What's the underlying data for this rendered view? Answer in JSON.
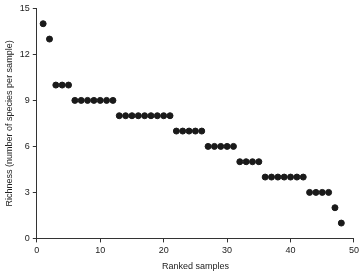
{
  "chart_data": {
    "type": "scatter",
    "x_label": "Ranked samples",
    "y_label": "Richness (number of species per sample)",
    "x": [
      1,
      2,
      3,
      4,
      5,
      6,
      7,
      8,
      9,
      10,
      11,
      12,
      13,
      14,
      15,
      16,
      17,
      18,
      19,
      20,
      21,
      22,
      23,
      24,
      25,
      26,
      27,
      28,
      29,
      30,
      31,
      32,
      33,
      34,
      35,
      36,
      37,
      38,
      39,
      40,
      41,
      42,
      43,
      44,
      45,
      46,
      47,
      48
    ],
    "values": [
      14,
      13,
      10,
      10,
      10,
      9,
      9,
      9,
      9,
      9,
      9,
      9,
      8,
      8,
      8,
      8,
      8,
      8,
      8,
      8,
      8,
      7,
      7,
      7,
      7,
      7,
      6,
      6,
      6,
      6,
      6,
      5,
      5,
      5,
      5,
      4,
      4,
      4,
      4,
      4,
      4,
      4,
      3,
      3,
      3,
      3,
      2,
      1
    ],
    "color": "#1a1a1a",
    "marker": "circle",
    "xlim": [
      0,
      50
    ],
    "xticks": [
      0,
      10,
      20,
      30,
      40,
      50
    ],
    "ylim": [
      0,
      15
    ],
    "yticks": [
      0,
      3,
      6,
      9,
      12,
      15
    ],
    "grid": false
  }
}
